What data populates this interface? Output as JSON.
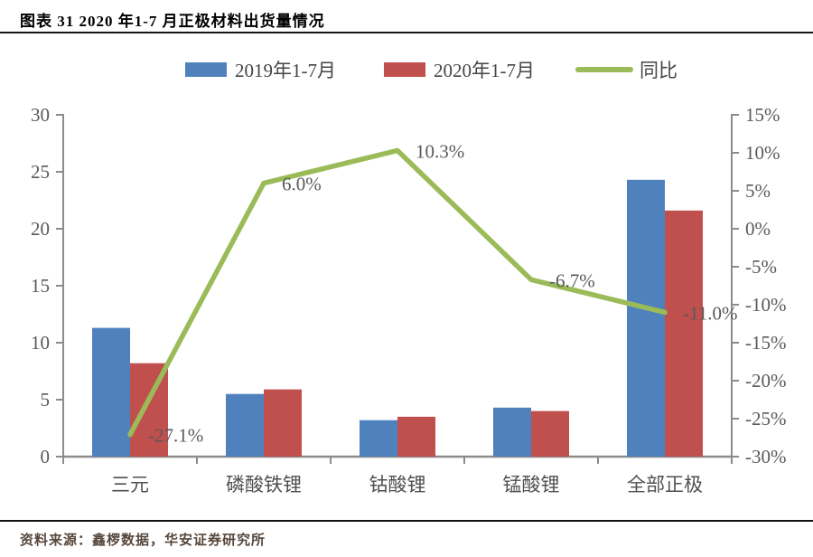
{
  "header": {
    "title": "图表  31 2020 年1-7 月正极材料出货量情况"
  },
  "footer": {
    "source": "资料来源：鑫椤数据，华安证券研究所"
  },
  "chart_data": {
    "type": "bar+line combo",
    "title": "2020年1-7月正极材料出货量情况",
    "categories": [
      "三元",
      "磷酸铁锂",
      "钴酸锂",
      "锰酸锂",
      "全部正极"
    ],
    "bar_series": [
      {
        "name": "2019年1-7月",
        "color": "#4F81BD",
        "values": [
          11.3,
          5.5,
          3.2,
          4.3,
          24.3
        ]
      },
      {
        "name": "2020年1-7月",
        "color": "#C0504D",
        "values": [
          8.2,
          5.9,
          3.5,
          4.0,
          21.6
        ]
      }
    ],
    "line_series": {
      "name": "同比",
      "color": "#9BBB59",
      "values_pct": [
        -27.1,
        6.0,
        10.3,
        -6.7,
        -11.0
      ],
      "labels": [
        "-27.1%",
        "6.0%",
        "10.3%",
        "-6.7%",
        "-11.0%"
      ]
    },
    "left_axis": {
      "min": 0,
      "max": 30,
      "step": 5,
      "ticks": [
        "0",
        "5",
        "10",
        "15",
        "20",
        "25",
        "30"
      ]
    },
    "right_axis": {
      "min": -30,
      "max": 15,
      "step": 5,
      "ticks": [
        "15%",
        "10%",
        "5%",
        "0%",
        "-5%",
        "-10%",
        "-15%",
        "-20%",
        "-25%",
        "-30%"
      ]
    },
    "legend_position": "top",
    "grid": false,
    "axis_color": "#8c8c8c",
    "tick_text_color": "#595959"
  }
}
